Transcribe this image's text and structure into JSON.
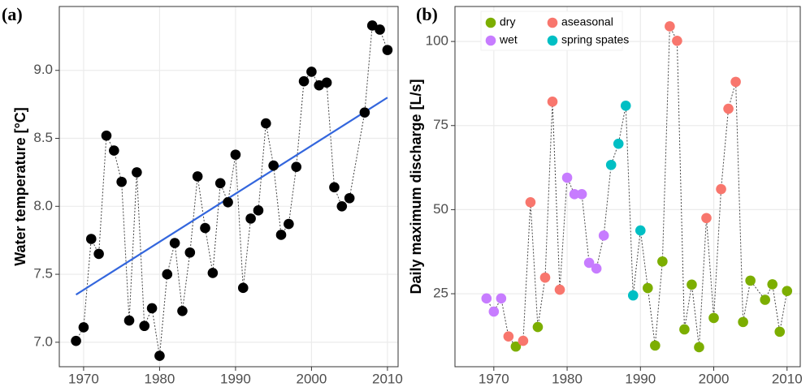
{
  "chart_data": [
    {
      "type": "scatter",
      "panel_label": "(a)",
      "y_label": "Water temperature [°C]",
      "x": [
        1969,
        1970,
        1971,
        1972,
        1973,
        1974,
        1975,
        1976,
        1977,
        1978,
        1979,
        1980,
        1981,
        1982,
        1983,
        1984,
        1985,
        1986,
        1987,
        1988,
        1989,
        1990,
        1991,
        1992,
        1993,
        1994,
        1995,
        1996,
        1997,
        1998,
        1999,
        2000,
        2001,
        2002,
        2003,
        2004,
        2005,
        2007,
        2008,
        2009,
        2010
      ],
      "values": [
        7.01,
        7.11,
        7.76,
        7.65,
        8.52,
        8.41,
        8.18,
        7.16,
        8.25,
        7.12,
        7.25,
        6.9,
        7.5,
        7.73,
        7.23,
        7.66,
        8.22,
        7.84,
        7.51,
        8.17,
        8.03,
        8.38,
        7.4,
        7.91,
        7.97,
        8.61,
        8.3,
        7.79,
        7.87,
        8.29,
        8.92,
        8.99,
        8.89,
        8.91,
        8.14,
        8.0,
        8.06,
        8.69,
        9.33,
        9.3,
        9.15
      ],
      "color": "#000000",
      "connect": true,
      "trend": {
        "x": [
          1969,
          2010
        ],
        "values": [
          7.35,
          8.8
        ],
        "color": "#3366dd"
      },
      "xlim": [
        1966.8,
        2011.4
      ],
      "ylim": [
        6.82,
        9.47
      ],
      "xticks": [
        1970,
        1980,
        1990,
        2000,
        2010
      ],
      "yticks": [
        {
          "value": 7,
          "label": "7.0"
        },
        7.5,
        {
          "value": 8,
          "label": "8.0"
        },
        8.5,
        {
          "value": 9,
          "label": "9.0"
        }
      ],
      "grid": true
    },
    {
      "type": "scatter",
      "panel_label": "(b)",
      "y_label": "Daily maximum discharge [L/s]",
      "x": [
        1969,
        1970,
        1971,
        1972,
        1973,
        1974,
        1975,
        1976,
        1977,
        1978,
        1979,
        1980,
        1981,
        1982,
        1983,
        1984,
        1985,
        1986,
        1987,
        1988,
        1989,
        1990,
        1991,
        1992,
        1993,
        1994,
        1995,
        1996,
        1997,
        1998,
        1999,
        2000,
        2001,
        2002,
        2003,
        2004,
        2005,
        2007,
        2008,
        2009,
        2010
      ],
      "values": [
        23.6,
        19.7,
        23.6,
        12.3,
        9.3,
        11.0,
        52.2,
        15.1,
        29.8,
        82.1,
        26.2,
        59.5,
        54.6,
        54.6,
        34.2,
        32.5,
        42.3,
        63.3,
        69.6,
        80.9,
        24.5,
        43.8,
        26.7,
        9.6,
        34.6,
        104.5,
        100.2,
        14.4,
        27.7,
        9.1,
        47.5,
        17.8,
        56.1,
        80.0,
        88.0,
        16.6,
        28.9,
        23.2,
        27.8,
        13.7,
        25.8
      ],
      "classes": [
        "wet",
        "wet",
        "wet",
        "aseasonal",
        "dry",
        "aseasonal",
        "aseasonal",
        "dry",
        "aseasonal",
        "aseasonal",
        "aseasonal",
        "wet",
        "wet",
        "wet",
        "wet",
        "wet",
        "wet",
        "spring spates",
        "spring spates",
        "spring spates",
        "spring spates",
        "spring spates",
        "dry",
        "dry",
        "dry",
        "aseasonal",
        "aseasonal",
        "dry",
        "dry",
        "dry",
        "aseasonal",
        "dry",
        "aseasonal",
        "aseasonal",
        "aseasonal",
        "dry",
        "dry",
        "dry",
        "dry",
        "dry",
        "dry"
      ],
      "legend": [
        {
          "name": "dry",
          "color": "#7cae00"
        },
        {
          "name": "aseasonal",
          "color": "#f8766d"
        },
        {
          "name": "wet",
          "color": "#c77cff"
        },
        {
          "name": "spring spates",
          "color": "#00bfc4"
        }
      ],
      "connect": true,
      "xlim": [
        1964.7,
        2011.8
      ],
      "ylim": [
        3.3,
        110.4
      ],
      "xticks": [
        1970,
        1980,
        1990,
        2000,
        2010
      ],
      "yticks": [
        25,
        50,
        75,
        100
      ],
      "grid": true
    }
  ]
}
